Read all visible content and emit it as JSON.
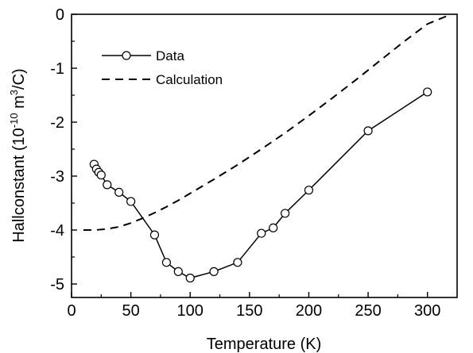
{
  "chart_data": {
    "type": "line",
    "xlabel": "Temperature (K)",
    "ylabel": {
      "prefix": "Hallconstant (10",
      "exp1": "-10",
      "mid": " m",
      "exp2": "3",
      "suffix": "/C)"
    },
    "xlim": [
      0,
      325
    ],
    "ylim": [
      -5.25,
      0
    ],
    "x_ticks": [
      0,
      50,
      100,
      150,
      200,
      250,
      300
    ],
    "y_ticks": [
      0,
      -1,
      -2,
      -3,
      -4,
      -5
    ],
    "grid": false,
    "legend_position": "top-left",
    "series": [
      {
        "name": "Data",
        "style": "solid-with-open-circles",
        "x": [
          19,
          21,
          23,
          25,
          30,
          40,
          50,
          70,
          80,
          90,
          100,
          120,
          140,
          160,
          170,
          180,
          200,
          250,
          300
        ],
        "y": [
          -2.78,
          -2.87,
          -2.93,
          -2.98,
          -3.16,
          -3.3,
          -3.47,
          -4.09,
          -4.6,
          -4.77,
          -4.89,
          -4.77,
          -4.6,
          -4.06,
          -3.96,
          -3.69,
          -3.26,
          -2.16,
          -1.44
        ]
      },
      {
        "name": "Calculation",
        "style": "dashed",
        "x": [
          10,
          20,
          30,
          40,
          50,
          60,
          70,
          80,
          90,
          100,
          120,
          140,
          160,
          180,
          200,
          220,
          240,
          260,
          280,
          300,
          320
        ],
        "y": [
          -4.0,
          -4.0,
          -3.98,
          -3.94,
          -3.87,
          -3.78,
          -3.68,
          -3.57,
          -3.45,
          -3.32,
          -3.06,
          -2.79,
          -2.5,
          -2.2,
          -1.88,
          -1.55,
          -1.21,
          -0.86,
          -0.51,
          -0.18,
          0.0
        ]
      }
    ]
  }
}
